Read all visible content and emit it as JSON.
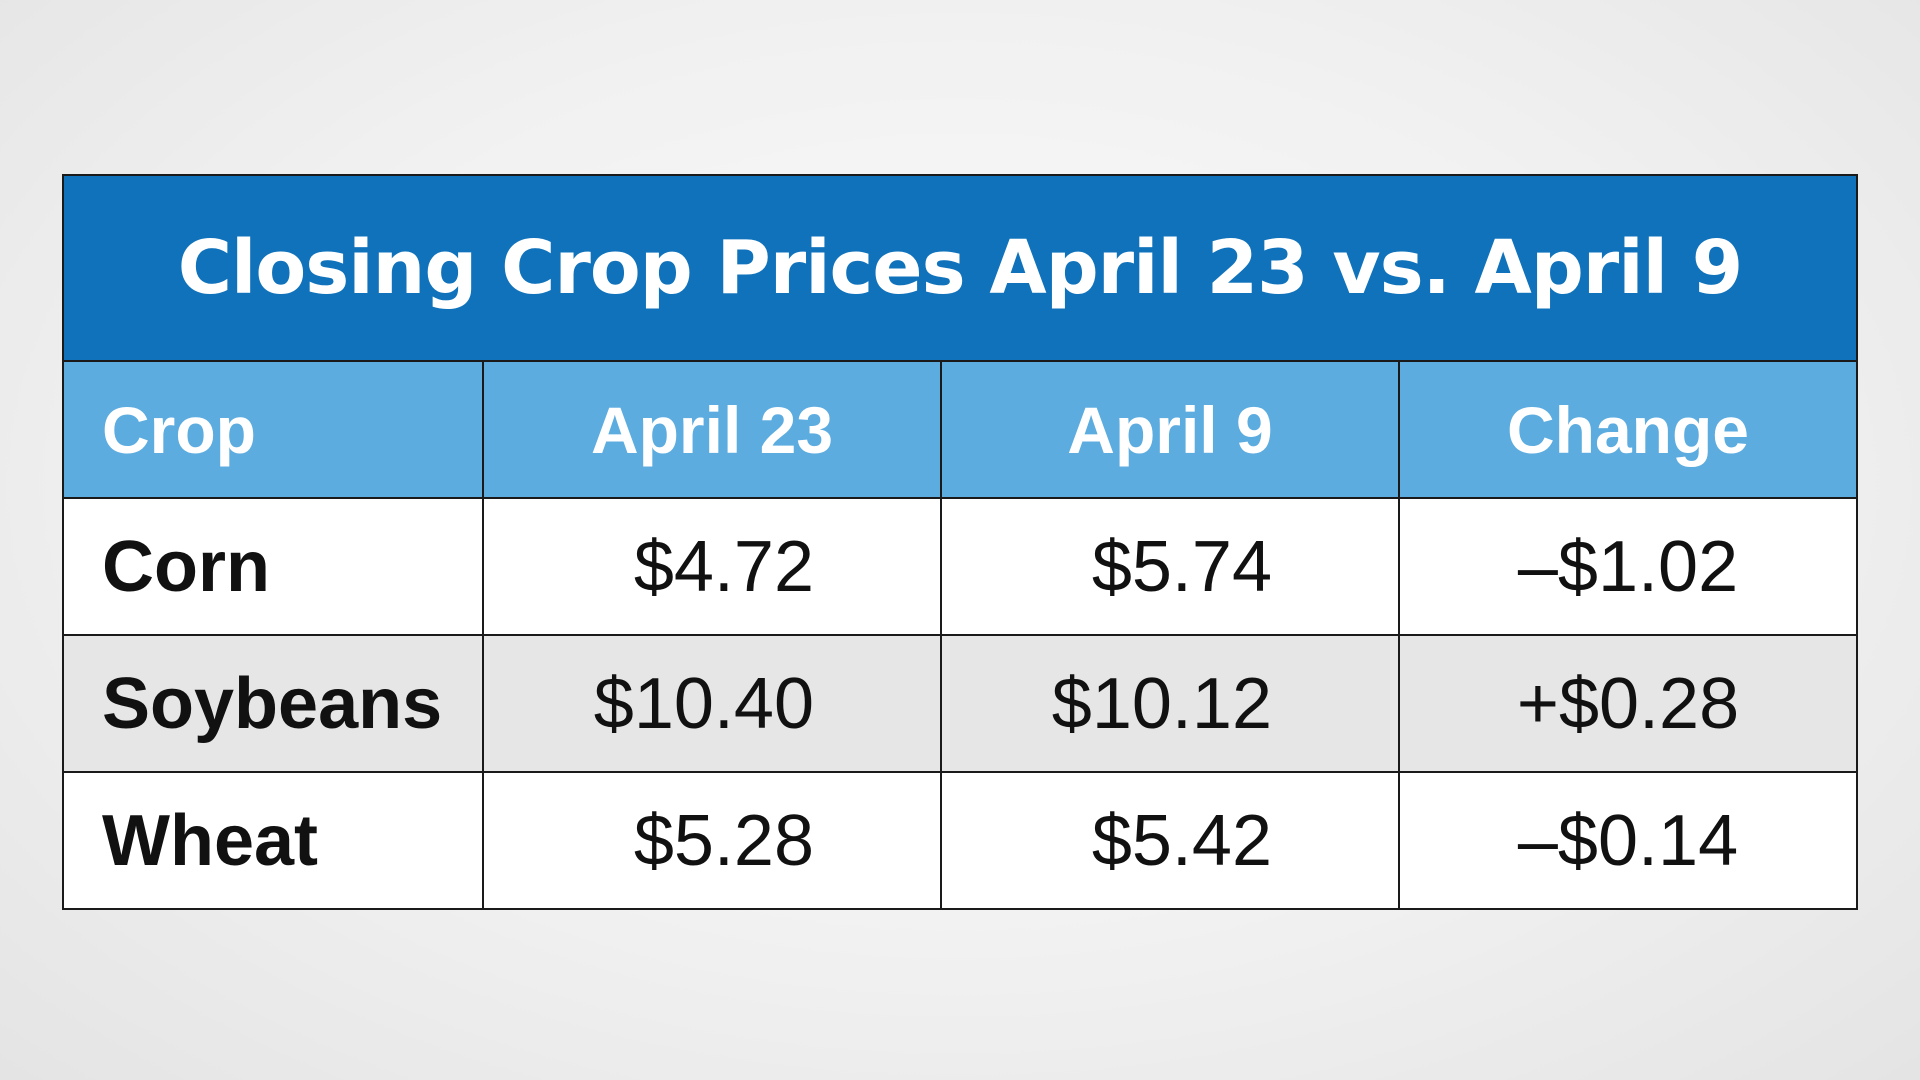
{
  "chart_data": {
    "type": "table",
    "title": "Closing Crop Prices April 23 vs. April 9",
    "columns": [
      "Crop",
      "April 23",
      "April 9",
      "Change"
    ],
    "rows": [
      [
        "Corn",
        "$4.72",
        "$5.74",
        "–$1.02"
      ],
      [
        "Soybeans",
        "$10.40",
        "$10.12",
        "+$0.28"
      ],
      [
        "Wheat",
        "$5.28",
        "$5.42",
        "–$0.14"
      ]
    ],
    "values": {
      "April 23": [
        4.72,
        10.4,
        5.28
      ],
      "April 9": [
        5.74,
        10.12,
        5.42
      ],
      "Change": [
        -1.02,
        0.28,
        -0.14
      ]
    }
  },
  "colors": {
    "title_background": "#0f72bb",
    "header_background": "#5cace0",
    "row_shade": "#e6e6e6"
  }
}
